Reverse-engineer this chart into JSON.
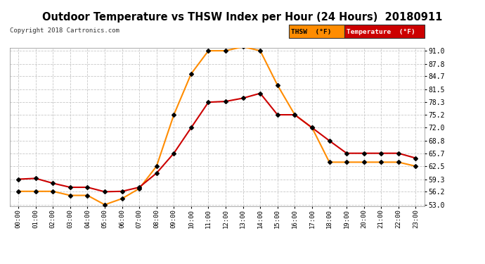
{
  "title": "Outdoor Temperature vs THSW Index per Hour (24 Hours)  20180911",
  "copyright": "Copyright 2018 Cartronics.com",
  "hours": [
    "00:00",
    "01:00",
    "02:00",
    "03:00",
    "04:00",
    "05:00",
    "06:00",
    "07:00",
    "08:00",
    "09:00",
    "10:00",
    "11:00",
    "12:00",
    "13:00",
    "14:00",
    "15:00",
    "16:00",
    "17:00",
    "18:00",
    "19:00",
    "20:00",
    "21:00",
    "22:00",
    "23:00"
  ],
  "temperature": [
    59.3,
    59.5,
    58.3,
    57.3,
    57.3,
    56.2,
    56.3,
    57.3,
    60.8,
    65.7,
    72.0,
    78.3,
    78.5,
    79.3,
    80.5,
    75.2,
    75.2,
    72.0,
    68.8,
    65.7,
    65.7,
    65.7,
    65.7,
    64.5
  ],
  "thsw": [
    56.3,
    56.3,
    56.3,
    55.3,
    55.3,
    53.0,
    54.5,
    57.0,
    62.5,
    75.2,
    85.3,
    91.0,
    91.0,
    92.0,
    91.0,
    82.5,
    75.2,
    72.0,
    63.5,
    63.5,
    63.5,
    63.5,
    63.5,
    62.5
  ],
  "temp_color": "#cc0000",
  "thsw_color": "#ff8c00",
  "marker_color": "#000000",
  "ylim_min": 53.0,
  "ylim_max": 91.0,
  "yticks": [
    53.0,
    56.2,
    59.3,
    62.5,
    65.7,
    68.8,
    72.0,
    75.2,
    78.3,
    81.5,
    84.7,
    87.8,
    91.0
  ],
  "background_color": "#ffffff",
  "grid_color": "#c8c8c8",
  "legend_thsw_bg": "#ff8c00",
  "legend_temp_bg": "#cc0000",
  "legend_thsw_text": "THSW  (°F)",
  "legend_temp_text": "Temperature  (°F)"
}
